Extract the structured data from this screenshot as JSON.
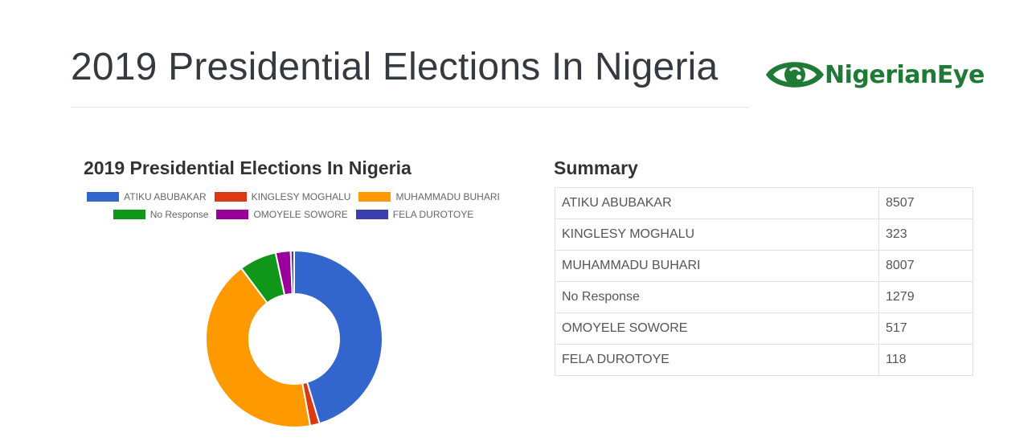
{
  "page": {
    "title": "2019 Presidential Elections In Nigeria",
    "logo_text": "NigerianEye"
  },
  "summary": {
    "title": "Summary"
  },
  "colors": {
    "ATIKU ABUBAKAR": "#3366cc",
    "KINGLESY MOGHALU": "#dc3912",
    "MUHAMMADU BUHARI": "#ff9900",
    "No Response": "#109618",
    "OMOYELE SOWORE": "#990099",
    "FELA DUROTOYE": "#3b3eac",
    "logo_green": "#1e7a35"
  },
  "chart_data": {
    "type": "pie",
    "donut": true,
    "title": "2019 Presidential Elections In Nigeria",
    "legend_position": "top",
    "categories": [
      "ATIKU ABUBAKAR",
      "KINGLESY MOGHALU",
      "MUHAMMADU BUHARI",
      "No Response",
      "OMOYELE SOWORE",
      "FELA DUROTOYE"
    ],
    "values": [
      8507,
      323,
      8007,
      1279,
      517,
      118
    ]
  }
}
